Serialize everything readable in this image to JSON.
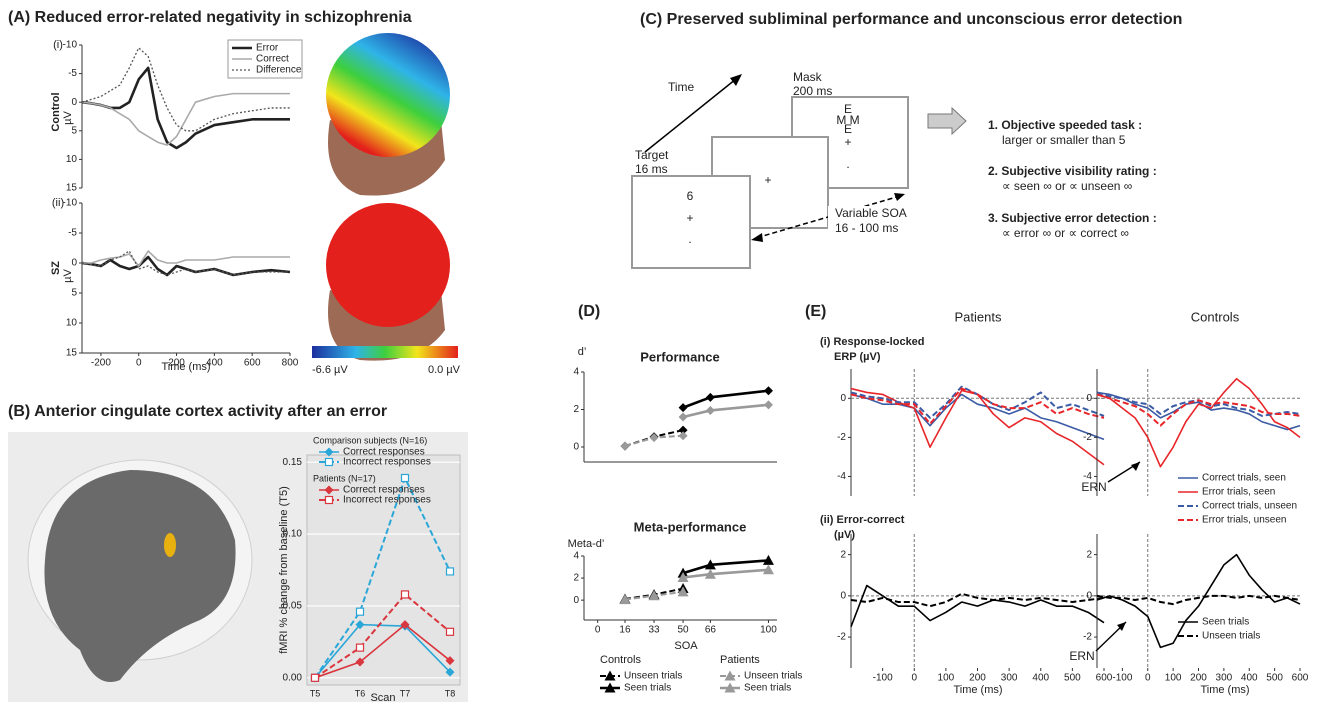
{
  "figure": {
    "panel_a_title": "(A)  Reduced error-related negativity in schizophrenia",
    "panel_b_title": "(B)  Anterior cingulate cortex activity after an error",
    "panel_c_title": "(C)  Preserved subliminal performance and unconscious error detection",
    "panel_d_label": "(D)",
    "panel_e_label": "(E)",
    "colorbar_labels": [
      "-6.6 µV",
      "0.0 µV"
    ],
    "paradigm": {
      "time": "Time",
      "mask": "Mask",
      "mask_duration": "200 ms",
      "target": "Target",
      "target_duration": "16 ms",
      "target_screen": [
        "6",
        "+",
        "."
      ],
      "blank_screen": [
        "+"
      ],
      "mask_screen": [
        "E",
        "M M",
        "E",
        "+",
        "."
      ],
      "soa": "Variable SOA",
      "soa_range": "16 - 100 ms",
      "tasks": [
        {
          "title": "1.  Objective speeded task :",
          "detail": "larger or smaller than 5"
        },
        {
          "title": "2.  Subjective visibility rating :",
          "detail": "∝ seen ∞  or ∝ unseen ∞"
        },
        {
          "title": "3.  Subjective error detection :",
          "detail": "∝ error ∞   or ∝ correct ∞"
        }
      ]
    }
  },
  "chart_data": [
    {
      "type": "line",
      "panel_label": "(i)",
      "row_label": "Control",
      "ylabel": "µV",
      "xlim": [
        -300,
        800
      ],
      "ylim": [
        15,
        -10
      ],
      "yticks": [
        -10,
        -5,
        0,
        5,
        10,
        15
      ],
      "legend": true,
      "x": [
        -300,
        -250,
        -200,
        -150,
        -100,
        -50,
        0,
        50,
        100,
        150,
        200,
        250,
        300,
        400,
        500,
        600,
        700,
        800
      ],
      "series": [
        {
          "name": "Error",
          "color": "#222222",
          "style": "thick",
          "values": [
            0,
            0.2,
            0.5,
            1,
            1,
            0,
            -4,
            -6,
            3,
            7,
            8,
            7,
            5.5,
            4,
            3.5,
            3,
            3,
            3
          ]
        },
        {
          "name": "Correct",
          "color": "#aaaaaa",
          "style": "solid",
          "values": [
            0,
            0.2,
            0.5,
            1,
            2,
            3,
            5,
            6,
            7,
            7.5,
            6,
            3,
            0,
            -1,
            -1.5,
            -1.5,
            -1.5,
            -1.5
          ]
        },
        {
          "name": "Difference",
          "color": "#555555",
          "style": "dotted",
          "values": [
            0,
            -0.5,
            -1,
            -2,
            -3,
            -6,
            -9.5,
            -8,
            -3,
            1,
            4,
            5,
            5,
            3,
            2,
            1.5,
            1,
            1
          ]
        }
      ]
    },
    {
      "type": "line",
      "panel_label": "(ii)",
      "row_label": "SZ",
      "ylabel": "µV",
      "xlabel": "Time (ms)",
      "xlim": [
        -300,
        800
      ],
      "ylim": [
        15,
        -10
      ],
      "yticks": [
        -10,
        -5,
        0,
        5,
        10,
        15
      ],
      "xticks": [
        -200,
        0,
        200,
        400,
        600,
        800
      ],
      "x": [
        -300,
        -250,
        -200,
        -150,
        -100,
        -50,
        0,
        50,
        100,
        150,
        200,
        250,
        300,
        400,
        500,
        600,
        700,
        800
      ],
      "series": [
        {
          "color": "#222222",
          "style": "thick",
          "values": [
            0,
            0.2,
            0.5,
            -0.5,
            0.5,
            1,
            0.5,
            -1,
            1,
            2,
            0.5,
            1,
            1.5,
            1,
            2,
            1.5,
            1.2,
            1.5
          ]
        },
        {
          "color": "#aaaaaa",
          "style": "solid",
          "values": [
            0,
            0,
            -0.5,
            -0.8,
            -1,
            -1.5,
            0.5,
            -2,
            -0.5,
            0,
            0,
            -0.5,
            -0.5,
            -0.5,
            -1,
            -1,
            -1,
            -1
          ]
        },
        {
          "color": "#555555",
          "style": "dotted",
          "values": [
            0,
            0.3,
            0.5,
            -0.5,
            -1,
            -2,
            1,
            0.5,
            1.5,
            2,
            1.5,
            1,
            1.5,
            1,
            2,
            1.5,
            1.5,
            1.5
          ]
        }
      ]
    },
    {
      "type": "line",
      "ylabel": "fMRI % change from baseline (T5)",
      "xlabel": "Scan",
      "categories": [
        "T5",
        "T6",
        "T7",
        "T8"
      ],
      "ylim": [
        -0.005,
        0.155
      ],
      "grid": true,
      "legend": true,
      "yticks": [
        {
          "value": 0,
          "label": "0.00"
        },
        {
          "value": 0.05,
          "label": "0.05"
        },
        {
          "value": 0.1,
          "label": "0.10"
        },
        {
          "value": 0.15,
          "label": "0.15"
        }
      ],
      "legend_groups": [
        "Comparison subjects (N=16)",
        "Patients (N=17)"
      ],
      "series": [
        {
          "name": "Correct responses",
          "group": 0,
          "color": "#2aa7d8",
          "style": "solid",
          "marker": "diamond",
          "values": [
            0,
            0.037,
            0.036,
            0.004
          ]
        },
        {
          "name": "Incorrect responses",
          "group": 0,
          "color": "#2aa7d8",
          "style": "dashed",
          "marker": "square-open",
          "values": [
            0,
            0.046,
            0.139,
            0.074
          ]
        },
        {
          "name": "Correct responses",
          "group": 1,
          "color": "#d9363e",
          "style": "solid",
          "marker": "diamond",
          "values": [
            0,
            0.011,
            0.037,
            0.012
          ]
        },
        {
          "name": "Incorrect responses",
          "group": 1,
          "color": "#d9363e",
          "style": "dashed",
          "marker": "square-open",
          "values": [
            0,
            0.021,
            0.058,
            0.032
          ]
        }
      ]
    },
    {
      "type": "line",
      "title": "Performance",
      "ylabel": "d’",
      "xlim": [
        -8,
        105
      ],
      "ylim": [
        -0.8,
        4
      ],
      "yticks": [
        0,
        2,
        4
      ],
      "series": [
        {
          "group": 0,
          "color": "#000000",
          "style": "dashed",
          "marker": "diamond",
          "x": [
            16,
            33,
            50
          ],
          "values": [
            0.05,
            0.55,
            0.9
          ]
        },
        {
          "group": 0,
          "color": "#000000",
          "style": "thick",
          "marker": "diamond",
          "x": [
            50,
            66,
            100
          ],
          "values": [
            2.1,
            2.65,
            3.0
          ]
        },
        {
          "group": 1,
          "color": "#999999",
          "style": "dashed",
          "marker": "diamond",
          "x": [
            16,
            33,
            50
          ],
          "values": [
            0.05,
            0.5,
            0.6
          ]
        },
        {
          "group": 1,
          "color": "#999999",
          "style": "thick",
          "marker": "diamond",
          "x": [
            50,
            66,
            100
          ],
          "values": [
            1.6,
            1.95,
            2.25
          ]
        }
      ]
    },
    {
      "type": "line",
      "title": "Meta-performance",
      "ylabel": "Meta-d’",
      "xlabel": "SOA",
      "xlim": [
        -8,
        105
      ],
      "ylim": [
        -1.8,
        4
      ],
      "yticks": [
        0,
        2,
        4
      ],
      "xticks": [
        0,
        16,
        33,
        50,
        66,
        100
      ],
      "legend": true,
      "legend_groups": [
        "Controls",
        "Patients"
      ],
      "series": [
        {
          "name": "Unseen trials",
          "group": 0,
          "color": "#000000",
          "style": "dashed",
          "marker": "triangle",
          "x": [
            16,
            33,
            50
          ],
          "values": [
            0.1,
            0.5,
            1.05
          ]
        },
        {
          "name": "Seen trials",
          "group": 0,
          "color": "#000000",
          "style": "thick",
          "marker": "triangle",
          "x": [
            50,
            66,
            100
          ],
          "values": [
            2.45,
            3.2,
            3.6
          ]
        },
        {
          "name": "Unseen trials",
          "group": 1,
          "color": "#999999",
          "style": "dashed",
          "marker": "triangle",
          "x": [
            16,
            33,
            50
          ],
          "values": [
            0.05,
            0.4,
            0.75
          ]
        },
        {
          "name": "Seen trials",
          "group": 1,
          "color": "#999999",
          "style": "thick",
          "marker": "triangle",
          "x": [
            50,
            66,
            100
          ],
          "values": [
            2.05,
            2.35,
            2.75
          ]
        }
      ]
    },
    {
      "type": "line",
      "title": "Patients",
      "row_label": [
        "(i) Response-locked",
        "ERP (µV)"
      ],
      "xlim": [
        -200,
        600
      ],
      "ylim": [
        -5,
        1.5
      ],
      "yticks": [
        -4,
        -2,
        0
      ],
      "zero_lines": true,
      "x": [
        -200,
        -150,
        -100,
        -50,
        0,
        50,
        100,
        150,
        200,
        250,
        300,
        350,
        400,
        450,
        500,
        550,
        600
      ],
      "series": [
        {
          "color": "#3b5ba5",
          "style": "solid",
          "values": [
            0.2,
            0,
            -0.3,
            -0.3,
            -0.5,
            -1.4,
            -0.5,
            0.2,
            -0.3,
            -0.5,
            -0.8,
            -0.5,
            -1,
            -1.2,
            -1.5,
            -1.8,
            -2.1
          ]
        },
        {
          "color": "#e8262a",
          "style": "solid",
          "values": [
            0.5,
            0.3,
            0.2,
            -0.2,
            -0.5,
            -2.5,
            -1,
            0.4,
            0.2,
            -0.8,
            -1.5,
            -1,
            -1.2,
            -1.8,
            -2.2,
            -2.8,
            -3.4
          ]
        },
        {
          "color": "#3b5ba5",
          "style": "dashed",
          "values": [
            0.3,
            0.1,
            0,
            -0.2,
            -0.2,
            -1,
            -0.3,
            0.6,
            0.2,
            -0.3,
            -0.6,
            -0.2,
            0.3,
            -0.5,
            -0.3,
            -0.6,
            -0.9
          ]
        },
        {
          "color": "#e8262a",
          "style": "dashed",
          "values": [
            0.2,
            0,
            -0.1,
            -0.3,
            -0.3,
            -1.3,
            -0.4,
            0.5,
            0.2,
            -0.3,
            -0.5,
            -0.5,
            -0.2,
            -0.8,
            -0.5,
            -0.8,
            -1
          ]
        }
      ]
    },
    {
      "type": "line",
      "title": "Controls",
      "xlim": [
        -200,
        600
      ],
      "ylim": [
        -5,
        1.5
      ],
      "yticks": [
        -4,
        -2,
        0
      ],
      "zero_lines": true,
      "legend": true,
      "annotation": "ERN",
      "x": [
        -200,
        -150,
        -100,
        -50,
        0,
        50,
        100,
        150,
        200,
        250,
        300,
        350,
        400,
        450,
        500,
        550,
        600
      ],
      "series": [
        {
          "name": "Correct trials, seen",
          "color": "#3b5ba5",
          "style": "solid",
          "values": [
            0.3,
            0.2,
            0,
            -0.3,
            -0.5,
            -1,
            -0.7,
            -0.3,
            -0.2,
            -0.6,
            -0.5,
            -0.6,
            -0.8,
            -1.2,
            -1.4,
            -1.6,
            -1.4
          ]
        },
        {
          "name": "Error trials, seen",
          "color": "#e8262a",
          "style": "solid",
          "values": [
            0.2,
            0,
            -0.5,
            -1,
            -2,
            -3.5,
            -2.5,
            -1.2,
            -0.3,
            -0.5,
            0.3,
            1,
            0.5,
            -0.3,
            -1.2,
            -1.5,
            -2
          ]
        },
        {
          "name": "Correct trials, unseen",
          "color": "#3b5ba5",
          "style": "dashed",
          "values": [
            0.3,
            0.1,
            0,
            -0.2,
            -0.3,
            -0.8,
            -0.4,
            -0.2,
            -0.1,
            -0.4,
            -0.3,
            -0.5,
            -0.6,
            -0.9,
            -0.8,
            -0.7,
            -0.8
          ]
        },
        {
          "name": "Error trials, unseen",
          "color": "#e8262a",
          "style": "dashed",
          "values": [
            0.2,
            0,
            -0.2,
            -0.4,
            -0.8,
            -1.4,
            -0.8,
            -0.3,
            -0.1,
            -0.3,
            -0.2,
            -0.3,
            -0.4,
            -0.7,
            -0.8,
            -0.8,
            -0.9
          ]
        }
      ]
    },
    {
      "type": "line",
      "row_label": [
        "(ii)  Error-correct",
        "(µV)"
      ],
      "xlabel": "Time (ms)",
      "xlim": [
        -200,
        600
      ],
      "ylim": [
        -3.5,
        3
      ],
      "yticks": [
        -2,
        0,
        2
      ],
      "xticks": [
        -100,
        0,
        100,
        200,
        300,
        400,
        500,
        600
      ],
      "zero_lines": true,
      "x": [
        -200,
        -150,
        -100,
        -50,
        0,
        50,
        100,
        150,
        200,
        250,
        300,
        350,
        400,
        450,
        500,
        550,
        600
      ],
      "series": [
        {
          "color": "#000000",
          "style": "solid",
          "values": [
            -1.5,
            0.5,
            0,
            -0.5,
            -0.5,
            -1.2,
            -0.8,
            -0.3,
            -0.5,
            -0.2,
            -0.3,
            -0.5,
            -0.2,
            -0.5,
            -0.5,
            -0.8,
            -1.3
          ]
        },
        {
          "color": "#000000",
          "style": "dashed",
          "values": [
            -0.2,
            -0.3,
            -0.1,
            -0.3,
            -0.3,
            -0.5,
            -0.3,
            0.1,
            -0.1,
            -0.2,
            -0.1,
            -0.2,
            -0.1,
            -0.2,
            -0.3,
            -0.2,
            -0.1
          ]
        }
      ]
    },
    {
      "type": "line",
      "xlabel": "Time (ms)",
      "xlim": [
        -200,
        600
      ],
      "ylim": [
        -3.5,
        3
      ],
      "yticks": [
        -2,
        0,
        2
      ],
      "xticks": [
        -100,
        0,
        100,
        200,
        300,
        400,
        500,
        600
      ],
      "zero_lines": true,
      "legend": true,
      "annotation": "ERN",
      "x": [
        -200,
        -150,
        -100,
        -50,
        0,
        50,
        100,
        150,
        200,
        250,
        300,
        350,
        400,
        450,
        500,
        550,
        600
      ],
      "series": [
        {
          "name": "Seen trials",
          "color": "#000000",
          "style": "solid",
          "values": [
            -0.2,
            0,
            -0.2,
            -0.5,
            -1,
            -2.5,
            -2.3,
            -1.2,
            -0.5,
            0.5,
            1.5,
            2,
            1,
            0.3,
            -0.3,
            -0.1,
            -0.4
          ]
        },
        {
          "name": "Unseen trials",
          "color": "#000000",
          "style": "dashed",
          "values": [
            0,
            -0.1,
            -0.1,
            -0.2,
            -0.1,
            -0.3,
            -0.4,
            -0.2,
            -0.1,
            0,
            0,
            -0.1,
            0,
            -0.1,
            0,
            -0.1,
            -0.2
          ]
        }
      ]
    }
  ]
}
